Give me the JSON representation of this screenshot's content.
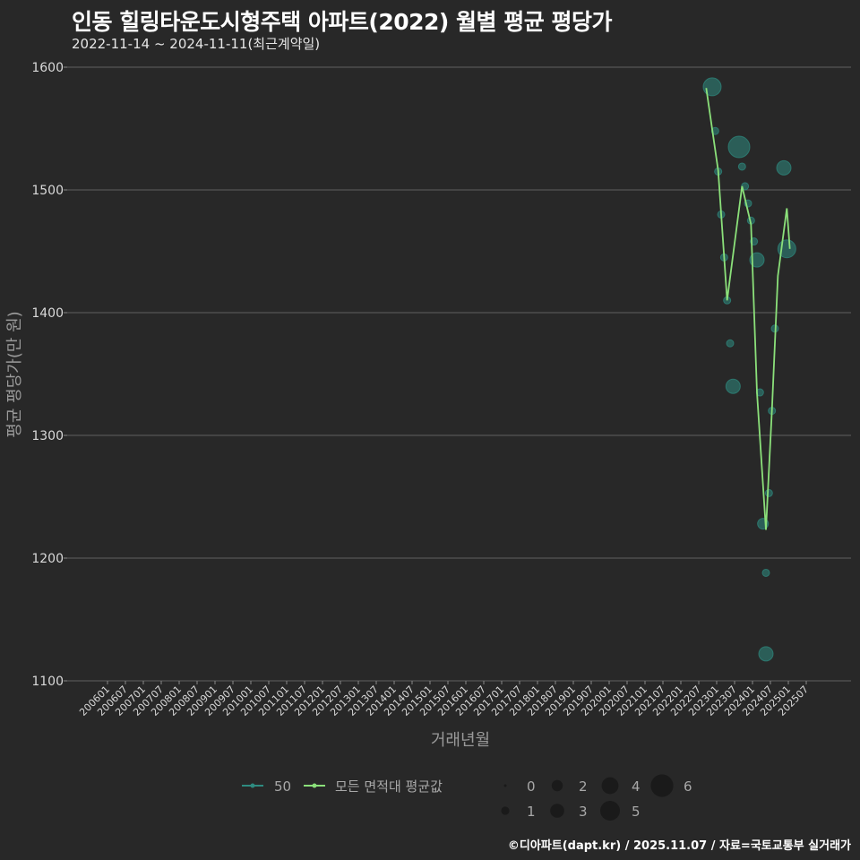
{
  "header": {
    "title": "인동 힐링타운도시형주택 아파트(2022) 월별 평균 평당가",
    "subtitle": "2022-11-14 ~ 2024-11-11(최근계약일)"
  },
  "footer": {
    "credit": "©디아파트(dapt.kr) / 2025.11.07 / 자료=국토교통부 실거래가"
  },
  "colors": {
    "background": "#282828",
    "gridline": "#555555",
    "series_50": "#2e8b80",
    "series_avg": "#8be07a"
  },
  "chart_data": {
    "type": "line",
    "title": "인동 힐링타운도시형주택 아파트(2022) 월별 평균 평당가",
    "subtitle": "2022-11-14 ~ 2024-11-11(최근계약일)",
    "xlabel": "거래년월",
    "ylabel": "평균 평당가(만 원)",
    "ylim": [
      1100,
      1600
    ],
    "yticks": [
      1100,
      1200,
      1300,
      1400,
      1500,
      1600
    ],
    "grid": true,
    "legend_position": "bottom",
    "x_ticks": [
      "200601",
      "200607",
      "200701",
      "200707",
      "200801",
      "200807",
      "200901",
      "200907",
      "201001",
      "201007",
      "201101",
      "201107",
      "201201",
      "201207",
      "201301",
      "201307",
      "201401",
      "201407",
      "201501",
      "201507",
      "201601",
      "201607",
      "201701",
      "201707",
      "201801",
      "201807",
      "201901",
      "201907",
      "202001",
      "202007",
      "202101",
      "202107",
      "202201",
      "202207",
      "202301",
      "202307",
      "202401",
      "202407",
      "202501",
      "202507"
    ],
    "legend": {
      "series": [
        "50",
        "모든 면적대 평균값"
      ],
      "size_title": "",
      "size_values": [
        0,
        1,
        2,
        3,
        4,
        5,
        6
      ]
    },
    "series": [
      {
        "name": "모든 면적대 평균값",
        "kind": "line",
        "x": [
          "2022-08",
          "2022-12",
          "2023-03",
          "2023-08",
          "2023-11",
          "2024-01",
          "2024-04",
          "2024-06",
          "2024-08",
          "2024-11",
          "2024-12"
        ],
        "values": [
          1583,
          1516,
          1410,
          1503,
          1472,
          1335,
          1223,
          1320,
          1430,
          1485,
          1452
        ]
      },
      {
        "name": "50",
        "kind": "scatter",
        "points": [
          {
            "x": "2022-10",
            "y": 1584,
            "size": 4
          },
          {
            "x": "2022-11",
            "y": 1548,
            "size": 1
          },
          {
            "x": "2022-12",
            "y": 1515,
            "size": 1
          },
          {
            "x": "2023-01",
            "y": 1480,
            "size": 1
          },
          {
            "x": "2023-02",
            "y": 1445,
            "size": 1
          },
          {
            "x": "2023-03",
            "y": 1410,
            "size": 1
          },
          {
            "x": "2023-04",
            "y": 1375,
            "size": 1
          },
          {
            "x": "2023-05",
            "y": 1340,
            "size": 3
          },
          {
            "x": "2023-07",
            "y": 1535,
            "size": 5
          },
          {
            "x": "2023-08",
            "y": 1519,
            "size": 1
          },
          {
            "x": "2023-09",
            "y": 1503,
            "size": 1
          },
          {
            "x": "2023-10",
            "y": 1489,
            "size": 1
          },
          {
            "x": "2023-11",
            "y": 1475,
            "size": 1
          },
          {
            "x": "2023-12",
            "y": 1458,
            "size": 1
          },
          {
            "x": "2024-01",
            "y": 1443,
            "size": 3
          },
          {
            "x": "2024-02",
            "y": 1335,
            "size": 1
          },
          {
            "x": "2024-03",
            "y": 1228,
            "size": 2
          },
          {
            "x": "2024-04",
            "y": 1188,
            "size": 1
          },
          {
            "x": "2024-04",
            "y": 1122,
            "size": 3
          },
          {
            "x": "2024-05",
            "y": 1253,
            "size": 1
          },
          {
            "x": "2024-06",
            "y": 1320,
            "size": 1
          },
          {
            "x": "2024-07",
            "y": 1387,
            "size": 1
          },
          {
            "x": "2024-10",
            "y": 1518,
            "size": 3
          },
          {
            "x": "2024-11",
            "y": 1452,
            "size": 4
          }
        ]
      }
    ]
  }
}
